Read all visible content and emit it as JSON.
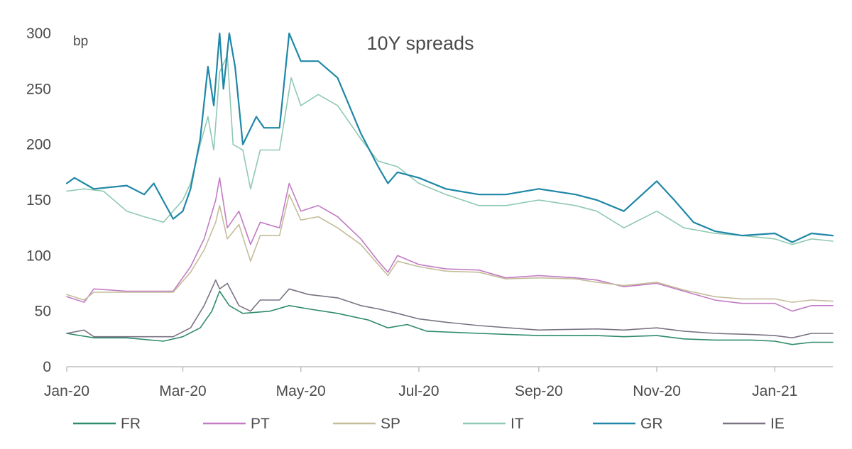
{
  "chart_data": {
    "type": "line",
    "title": "10Y spreads",
    "unit_label": "bp",
    "xlabel": "",
    "ylabel": "",
    "ylim": [
      0,
      300
    ],
    "y_ticks": [
      0,
      50,
      100,
      150,
      200,
      250,
      300
    ],
    "x_range": [
      "2020-01-01",
      "2021-01-31"
    ],
    "x_ticks": [
      {
        "date": "2020-01-01",
        "label": "Jan-20"
      },
      {
        "date": "2020-03-01",
        "label": "Mar-20"
      },
      {
        "date": "2020-05-01",
        "label": "May-20"
      },
      {
        "date": "2020-07-01",
        "label": "Jul-20"
      },
      {
        "date": "2020-09-01",
        "label": "Sep-20"
      },
      {
        "date": "2020-11-01",
        "label": "Nov-20"
      },
      {
        "date": "2021-01-01",
        "label": "Jan-21"
      }
    ],
    "grid": false,
    "legend_position": "bottom",
    "series": [
      {
        "name": "FR",
        "color": "#2e8b6b",
        "points": [
          [
            "2020-01-01",
            30
          ],
          [
            "2020-01-15",
            26
          ],
          [
            "2020-02-01",
            26
          ],
          [
            "2020-02-20",
            23
          ],
          [
            "2020-03-01",
            27
          ],
          [
            "2020-03-10",
            35
          ],
          [
            "2020-03-16",
            50
          ],
          [
            "2020-03-20",
            68
          ],
          [
            "2020-03-25",
            55
          ],
          [
            "2020-04-01",
            48
          ],
          [
            "2020-04-15",
            50
          ],
          [
            "2020-04-25",
            55
          ],
          [
            "2020-05-05",
            52
          ],
          [
            "2020-05-20",
            48
          ],
          [
            "2020-06-05",
            42
          ],
          [
            "2020-06-15",
            35
          ],
          [
            "2020-06-25",
            38
          ],
          [
            "2020-07-05",
            32
          ],
          [
            "2020-08-01",
            30
          ],
          [
            "2020-09-01",
            28
          ],
          [
            "2020-10-01",
            28
          ],
          [
            "2020-10-15",
            27
          ],
          [
            "2020-11-01",
            28
          ],
          [
            "2020-11-15",
            25
          ],
          [
            "2020-12-01",
            24
          ],
          [
            "2020-12-20",
            24
          ],
          [
            "2021-01-01",
            23
          ],
          [
            "2021-01-10",
            20
          ],
          [
            "2021-01-20",
            22
          ],
          [
            "2021-01-31",
            22
          ]
        ]
      },
      {
        "name": "PT",
        "color": "#c27bc4",
        "points": [
          [
            "2020-01-01",
            63
          ],
          [
            "2020-01-10",
            58
          ],
          [
            "2020-01-15",
            70
          ],
          [
            "2020-02-01",
            68
          ],
          [
            "2020-02-25",
            68
          ],
          [
            "2020-03-05",
            90
          ],
          [
            "2020-03-12",
            115
          ],
          [
            "2020-03-18",
            150
          ],
          [
            "2020-03-20",
            170
          ],
          [
            "2020-03-24",
            125
          ],
          [
            "2020-03-30",
            140
          ],
          [
            "2020-04-05",
            110
          ],
          [
            "2020-04-10",
            130
          ],
          [
            "2020-04-20",
            125
          ],
          [
            "2020-04-25",
            165
          ],
          [
            "2020-05-01",
            140
          ],
          [
            "2020-05-10",
            145
          ],
          [
            "2020-05-20",
            135
          ],
          [
            "2020-06-01",
            115
          ],
          [
            "2020-06-10",
            95
          ],
          [
            "2020-06-15",
            85
          ],
          [
            "2020-06-20",
            100
          ],
          [
            "2020-07-01",
            92
          ],
          [
            "2020-07-15",
            88
          ],
          [
            "2020-08-01",
            87
          ],
          [
            "2020-08-15",
            80
          ],
          [
            "2020-09-01",
            82
          ],
          [
            "2020-09-20",
            80
          ],
          [
            "2020-10-01",
            78
          ],
          [
            "2020-10-15",
            72
          ],
          [
            "2020-11-01",
            75
          ],
          [
            "2020-11-15",
            68
          ],
          [
            "2020-12-01",
            60
          ],
          [
            "2020-12-15",
            57
          ],
          [
            "2021-01-01",
            57
          ],
          [
            "2021-01-10",
            50
          ],
          [
            "2021-01-20",
            55
          ],
          [
            "2021-01-31",
            55
          ]
        ]
      },
      {
        "name": "SP",
        "color": "#c4bd9a",
        "points": [
          [
            "2020-01-01",
            65
          ],
          [
            "2020-01-10",
            60
          ],
          [
            "2020-01-15",
            67
          ],
          [
            "2020-02-01",
            67
          ],
          [
            "2020-02-25",
            67
          ],
          [
            "2020-03-05",
            85
          ],
          [
            "2020-03-12",
            105
          ],
          [
            "2020-03-18",
            130
          ],
          [
            "2020-03-20",
            145
          ],
          [
            "2020-03-24",
            115
          ],
          [
            "2020-03-30",
            128
          ],
          [
            "2020-04-05",
            95
          ],
          [
            "2020-04-10",
            118
          ],
          [
            "2020-04-20",
            118
          ],
          [
            "2020-04-25",
            155
          ],
          [
            "2020-05-01",
            132
          ],
          [
            "2020-05-10",
            135
          ],
          [
            "2020-05-20",
            125
          ],
          [
            "2020-06-01",
            110
          ],
          [
            "2020-06-10",
            92
          ],
          [
            "2020-06-15",
            82
          ],
          [
            "2020-06-20",
            95
          ],
          [
            "2020-07-01",
            90
          ],
          [
            "2020-07-15",
            86
          ],
          [
            "2020-08-01",
            85
          ],
          [
            "2020-08-15",
            79
          ],
          [
            "2020-09-01",
            80
          ],
          [
            "2020-09-20",
            79
          ],
          [
            "2020-10-01",
            76
          ],
          [
            "2020-10-15",
            73
          ],
          [
            "2020-11-01",
            76
          ],
          [
            "2020-11-15",
            69
          ],
          [
            "2020-12-01",
            63
          ],
          [
            "2020-12-15",
            61
          ],
          [
            "2021-01-01",
            61
          ],
          [
            "2021-01-10",
            58
          ],
          [
            "2021-01-20",
            60
          ],
          [
            "2021-01-31",
            59
          ]
        ]
      },
      {
        "name": "IT",
        "color": "#8fc9b1",
        "points": [
          [
            "2020-01-01",
            158
          ],
          [
            "2020-01-10",
            160
          ],
          [
            "2020-01-20",
            158
          ],
          [
            "2020-02-01",
            140
          ],
          [
            "2020-02-10",
            135
          ],
          [
            "2020-02-20",
            130
          ],
          [
            "2020-03-01",
            150
          ],
          [
            "2020-03-05",
            165
          ],
          [
            "2020-03-10",
            200
          ],
          [
            "2020-03-14",
            225
          ],
          [
            "2020-03-17",
            195
          ],
          [
            "2020-03-20",
            265
          ],
          [
            "2020-03-24",
            280
          ],
          [
            "2020-03-27",
            200
          ],
          [
            "2020-04-01",
            195
          ],
          [
            "2020-04-05",
            160
          ],
          [
            "2020-04-10",
            195
          ],
          [
            "2020-04-20",
            195
          ],
          [
            "2020-04-26",
            260
          ],
          [
            "2020-05-01",
            235
          ],
          [
            "2020-05-10",
            245
          ],
          [
            "2020-05-20",
            235
          ],
          [
            "2020-06-01",
            205
          ],
          [
            "2020-06-10",
            185
          ],
          [
            "2020-06-20",
            180
          ],
          [
            "2020-07-01",
            165
          ],
          [
            "2020-07-15",
            155
          ],
          [
            "2020-08-01",
            145
          ],
          [
            "2020-08-15",
            145
          ],
          [
            "2020-09-01",
            150
          ],
          [
            "2020-09-20",
            145
          ],
          [
            "2020-10-01",
            140
          ],
          [
            "2020-10-15",
            125
          ],
          [
            "2020-11-01",
            140
          ],
          [
            "2020-11-15",
            125
          ],
          [
            "2020-12-01",
            120
          ],
          [
            "2020-12-15",
            118
          ],
          [
            "2021-01-01",
            115
          ],
          [
            "2021-01-10",
            110
          ],
          [
            "2021-01-20",
            115
          ],
          [
            "2021-01-31",
            113
          ]
        ]
      },
      {
        "name": "GR",
        "color": "#1f87a7",
        "points": [
          [
            "2020-01-01",
            165
          ],
          [
            "2020-01-05",
            170
          ],
          [
            "2020-01-15",
            160
          ],
          [
            "2020-02-01",
            163
          ],
          [
            "2020-02-10",
            155
          ],
          [
            "2020-02-15",
            165
          ],
          [
            "2020-02-25",
            133
          ],
          [
            "2020-03-01",
            140
          ],
          [
            "2020-03-05",
            160
          ],
          [
            "2020-03-10",
            205
          ],
          [
            "2020-03-14",
            270
          ],
          [
            "2020-03-17",
            235
          ],
          [
            "2020-03-20",
            300
          ],
          [
            "2020-03-22",
            250
          ],
          [
            "2020-03-25",
            300
          ],
          [
            "2020-03-28",
            270
          ],
          [
            "2020-04-01",
            200
          ],
          [
            "2020-04-08",
            225
          ],
          [
            "2020-04-12",
            215
          ],
          [
            "2020-04-20",
            215
          ],
          [
            "2020-04-25",
            300
          ],
          [
            "2020-05-01",
            275
          ],
          [
            "2020-05-10",
            275
          ],
          [
            "2020-05-20",
            260
          ],
          [
            "2020-06-01",
            210
          ],
          [
            "2020-06-10",
            180
          ],
          [
            "2020-06-15",
            165
          ],
          [
            "2020-06-20",
            175
          ],
          [
            "2020-07-01",
            170
          ],
          [
            "2020-07-15",
            160
          ],
          [
            "2020-08-01",
            155
          ],
          [
            "2020-08-15",
            155
          ],
          [
            "2020-09-01",
            160
          ],
          [
            "2020-09-20",
            155
          ],
          [
            "2020-10-01",
            150
          ],
          [
            "2020-10-15",
            140
          ],
          [
            "2020-11-01",
            167
          ],
          [
            "2020-11-10",
            150
          ],
          [
            "2020-11-20",
            130
          ],
          [
            "2020-12-01",
            122
          ],
          [
            "2020-12-15",
            118
          ],
          [
            "2021-01-01",
            120
          ],
          [
            "2021-01-10",
            112
          ],
          [
            "2021-01-20",
            120
          ],
          [
            "2021-01-31",
            118
          ]
        ]
      },
      {
        "name": "IE",
        "color": "#7b7384",
        "points": [
          [
            "2020-01-01",
            30
          ],
          [
            "2020-01-10",
            33
          ],
          [
            "2020-01-15",
            27
          ],
          [
            "2020-02-01",
            27
          ],
          [
            "2020-02-25",
            27
          ],
          [
            "2020-03-05",
            35
          ],
          [
            "2020-03-12",
            55
          ],
          [
            "2020-03-18",
            78
          ],
          [
            "2020-03-20",
            70
          ],
          [
            "2020-03-24",
            75
          ],
          [
            "2020-03-30",
            55
          ],
          [
            "2020-04-05",
            50
          ],
          [
            "2020-04-10",
            60
          ],
          [
            "2020-04-20",
            60
          ],
          [
            "2020-04-25",
            70
          ],
          [
            "2020-05-05",
            65
          ],
          [
            "2020-05-20",
            62
          ],
          [
            "2020-06-01",
            55
          ],
          [
            "2020-06-10",
            52
          ],
          [
            "2020-06-20",
            48
          ],
          [
            "2020-07-01",
            43
          ],
          [
            "2020-07-15",
            40
          ],
          [
            "2020-08-01",
            37
          ],
          [
            "2020-09-01",
            33
          ],
          [
            "2020-10-01",
            34
          ],
          [
            "2020-10-15",
            33
          ],
          [
            "2020-11-01",
            35
          ],
          [
            "2020-11-15",
            32
          ],
          [
            "2020-12-01",
            30
          ],
          [
            "2020-12-20",
            29
          ],
          [
            "2021-01-01",
            28
          ],
          [
            "2021-01-10",
            26
          ],
          [
            "2021-01-20",
            30
          ],
          [
            "2021-01-31",
            30
          ]
        ]
      }
    ]
  }
}
